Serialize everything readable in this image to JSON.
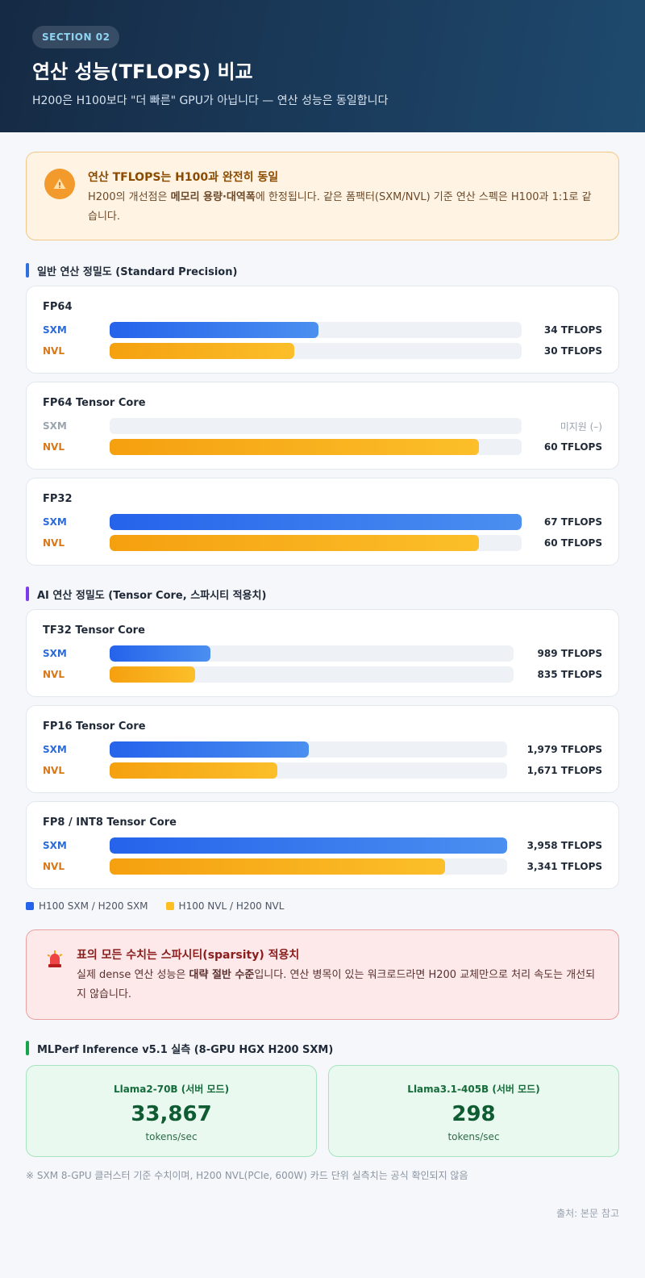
{
  "header": {
    "badge": "SECTION 02",
    "title": "연산 성능(TFLOPS) 비교",
    "subtitle": "H200은 H100보다 \"더 빠른\" GPU가 아닙니다 — 연산 성능은 동일합니다"
  },
  "notice": {
    "icon": "warning-icon",
    "title": "연산 TFLOPS는 H100과 완전히 동일",
    "text_pre": "H200의 개선점은 ",
    "text_bold": "메모리 용량·대역폭",
    "text_post": "에 한정됩니다. 같은 폼팩터(SXM/NVL) 기준 연산 스펙은 H100과 1:1로 같습니다."
  },
  "colors": {
    "sxm": "#2563eb",
    "nvl": "#f5a00f",
    "standard_bar": "#2f6fe0",
    "ai_bar": "#7c3aed",
    "mlperf_bar": "#16a34a"
  },
  "sections": {
    "standard": "일반 연산 정밀도 (Standard Precision)",
    "ai": "AI 연산 정밀도 (Tensor Core, 스파시티 적용치)",
    "mlperf": "MLPerf Inference v5.1 실측 (8-GPU HGX H200 SXM)"
  },
  "row_labels": {
    "sxm": "SXM",
    "nvl": "NVL"
  },
  "chart_data": [
    {
      "type": "bar",
      "orientation": "horizontal",
      "title": "일반 연산 정밀도 (Standard Precision)",
      "unit": "TFLOPS",
      "series": [
        {
          "name": "H100 SXM / H200 SXM",
          "key": "sxm"
        },
        {
          "name": "H100 NVL / H200 NVL",
          "key": "nvl"
        }
      ],
      "groups": [
        {
          "name": "FP64",
          "max": 67,
          "sxm": {
            "value": 34,
            "label": "34 TFLOPS"
          },
          "nvl": {
            "value": 30,
            "label": "30 TFLOPS"
          }
        },
        {
          "name": "FP64 Tensor Core",
          "max": 67,
          "sxm": {
            "value": null,
            "label": "미지원 (–)"
          },
          "nvl": {
            "value": 60,
            "label": "60 TFLOPS"
          }
        },
        {
          "name": "FP32",
          "max": 67,
          "sxm": {
            "value": 67,
            "label": "67 TFLOPS"
          },
          "nvl": {
            "value": 60,
            "label": "60 TFLOPS"
          }
        }
      ]
    },
    {
      "type": "bar",
      "orientation": "horizontal",
      "title": "AI 연산 정밀도 (Tensor Core, 스파시티 적용치)",
      "unit": "TFLOPS",
      "series": [
        {
          "name": "H100 SXM / H200 SXM",
          "key": "sxm"
        },
        {
          "name": "H100 NVL / H200 NVL",
          "key": "nvl"
        }
      ],
      "groups": [
        {
          "name": "TF32 Tensor Core",
          "max": 3958,
          "sxm": {
            "value": 989,
            "label": "989 TFLOPS"
          },
          "nvl": {
            "value": 835,
            "label": "835 TFLOPS"
          }
        },
        {
          "name": "FP16 Tensor Core",
          "max": 3958,
          "sxm": {
            "value": 1979,
            "label": "1,979 TFLOPS"
          },
          "nvl": {
            "value": 1671,
            "label": "1,671 TFLOPS"
          }
        },
        {
          "name": "FP8 / INT8 Tensor Core",
          "max": 3958,
          "sxm": {
            "value": 3958,
            "label": "3,958 TFLOPS"
          },
          "nvl": {
            "value": 3341,
            "label": "3,341 TFLOPS"
          }
        }
      ]
    }
  ],
  "legend": [
    {
      "label": "H100 SXM / H200 SXM",
      "key": "sxm"
    },
    {
      "label": "H100 NVL / H200 NVL",
      "key": "nvl"
    }
  ],
  "sparsity_alert": {
    "icon": "siren-icon",
    "title": "표의 모든 수치는 스파시티(sparsity) 적용치",
    "text_pre": "실제 dense 연산 성능은 ",
    "text_bold": "대략 절반 수준",
    "text_post": "입니다. 연산 병목이 있는 워크로드라면 H200 교체만으로 처리 속도는 개선되지 않습니다."
  },
  "mlperf": [
    {
      "label": "Llama2-70B (서버 모드)",
      "value": "33,867",
      "unit": "tokens/sec"
    },
    {
      "label": "Llama3.1-405B (서버 모드)",
      "value": "298",
      "unit": "tokens/sec"
    }
  ],
  "footnote": "※ SXM 8-GPU 클러스터 기준 수치이며, H200 NVL(PCIe, 600W) 카드 단위 실측치는 공식 확인되지 않음",
  "source": "출처: 본문 참고"
}
